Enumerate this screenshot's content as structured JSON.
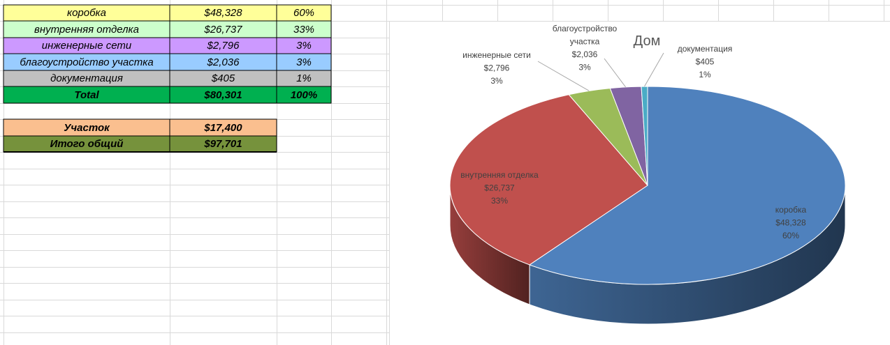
{
  "table": {
    "rows": [
      {
        "name": "коробка",
        "amount": "$48,328",
        "percent": "60%",
        "color": "#ffff99"
      },
      {
        "name": "внутренняя отделка",
        "amount": "$26,737",
        "percent": "33%",
        "color": "#ccffcc"
      },
      {
        "name": "инженерные сети",
        "amount": "$2,796",
        "percent": "3%",
        "color": "#cc99ff"
      },
      {
        "name": "благоустройство участка",
        "amount": "$2,036",
        "percent": "3%",
        "color": "#99ccff"
      },
      {
        "name": "документация",
        "amount": "$405",
        "percent": "1%",
        "color": "#c0c0c0"
      }
    ],
    "total": {
      "name": "Total",
      "amount": "$80,301",
      "percent": "100%",
      "color": "#00b050"
    },
    "plot": {
      "name": "Участок",
      "amount": "$17,400",
      "color": "#fabf8f"
    },
    "grand_total": {
      "name": "Итого общий",
      "amount": "$97,701",
      "color": "#76923c"
    }
  },
  "chart_data": {
    "type": "pie",
    "title": "Дом",
    "categories": [
      "коробка",
      "внутренняя отделка",
      "инженерные сети",
      "благоустройство участка",
      "документация"
    ],
    "values": [
      48328,
      26737,
      2796,
      2036,
      405
    ],
    "value_labels": [
      "$48,328",
      "$26,737",
      "$2,796",
      "$2,036",
      "$405"
    ],
    "percent_labels": [
      "60%",
      "33%",
      "3%",
      "3%",
      "1%"
    ],
    "label_lines": [
      [
        "коробка"
      ],
      [
        "внутренняя отделка"
      ],
      [
        "инженерные сети"
      ],
      [
        "благоустройство",
        "участка"
      ],
      [
        "документация"
      ]
    ],
    "colors": [
      "#4f81bd",
      "#c0504d",
      "#9bbb59",
      "#8064a2",
      "#4bacc6"
    ],
    "style": "3d"
  }
}
